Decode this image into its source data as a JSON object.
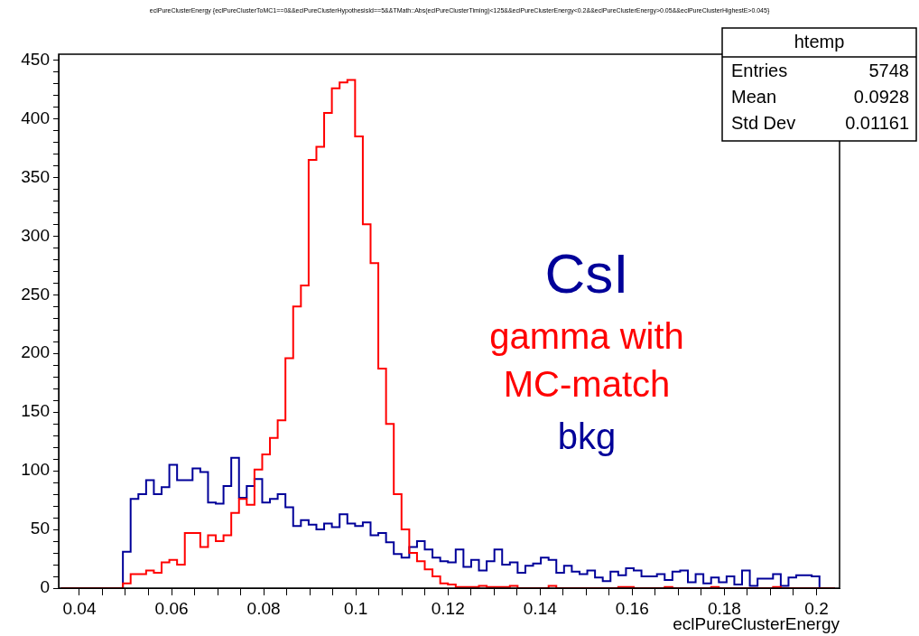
{
  "chart_data": {
    "type": "histogram",
    "title": "eclPureClusterEnergy {eclPureClusterToMC1==0&&eclPureClusterHypothesisId==5&&TMath::Abs(eclPureClusterTiming)<125&&eclPureClusterEnergy<0.2&&eclPureClusterEnergy>0.05&&eclPureClusterHighestE>0.045}",
    "xlabel": "eclPureClusterEnergy",
    "annotations": [
      "CsI",
      "htemp",
      "Entries",
      "5748",
      "Mean",
      "0.0928",
      "Std Dev",
      "0.01161"
    ],
    "bins": [
      0.036,
      0.03768,
      0.03936,
      0.04104,
      0.04272,
      0.0444,
      0.04608,
      0.04776,
      0.04944,
      0.05112,
      0.0528,
      0.05448,
      0.05616,
      0.05784,
      0.05952,
      0.0612,
      0.06288,
      0.06456,
      0.06624,
      0.06792,
      0.0696,
      0.07128,
      0.07296,
      0.07464,
      0.07632,
      0.078,
      0.07968,
      0.08136,
      0.08304,
      0.08472,
      0.0864,
      0.08808,
      0.08976,
      0.09144,
      0.09312,
      0.0948,
      0.09648,
      0.09816,
      0.09984,
      0.10152,
      0.1032,
      0.10488,
      0.10656,
      0.10824,
      0.10992,
      0.1116,
      0.11328,
      0.11496,
      0.11664,
      0.11832,
      0.12,
      0.12168,
      0.12336,
      0.12504,
      0.12672,
      0.1284,
      0.13008,
      0.13176,
      0.13344,
      0.13512,
      0.1368,
      0.13848,
      0.14016,
      0.14184,
      0.14352,
      0.1452,
      0.14688,
      0.14856,
      0.15024,
      0.15192,
      0.1536,
      0.15528,
      0.15696,
      0.15864,
      0.16032,
      0.162,
      0.16368,
      0.16536,
      0.16704,
      0.16872,
      0.1704,
      0.17208,
      0.17376,
      0.17544,
      0.17712,
      0.1788,
      0.18048,
      0.18216,
      0.18384,
      0.18552,
      0.1872,
      0.18888,
      0.19056,
      0.19224,
      0.19392,
      0.1956,
      0.19728,
      0.19896,
      0.20064,
      0.20232,
      0.204
    ],
    "series": [
      {
        "name": "gamma with MC-match",
        "color": "#ff0000",
        "values": [
          0,
          0,
          0,
          0,
          0,
          0,
          0,
          0,
          4,
          12,
          12,
          15,
          13,
          22,
          24,
          20,
          47,
          47,
          35,
          45,
          40,
          45,
          64,
          76,
          71,
          101,
          114,
          128,
          143,
          196,
          240,
          258,
          365,
          376,
          405,
          426,
          431,
          433,
          385,
          310,
          277,
          187,
          140,
          80,
          50,
          30,
          23,
          16,
          10,
          4,
          3,
          1,
          1,
          1,
          2,
          1,
          1,
          1,
          2,
          0,
          0,
          0,
          0,
          2,
          0,
          0,
          0,
          0,
          0,
          0,
          0,
          0,
          1,
          1,
          0,
          0,
          0,
          0,
          1,
          0,
          0,
          0,
          0,
          0,
          1,
          0,
          0,
          0,
          0,
          0,
          0,
          0,
          1,
          0,
          0,
          0,
          0,
          0,
          0,
          0
        ]
      },
      {
        "name": "bkg",
        "color": "#000099",
        "values": [
          0,
          0,
          0,
          0,
          0,
          0,
          0,
          0,
          31,
          76,
          80,
          92,
          80,
          86,
          105,
          92,
          92,
          102,
          99,
          73,
          72,
          87,
          111,
          77,
          87,
          93,
          73,
          76,
          80,
          69,
          53,
          58,
          54,
          50,
          55,
          52,
          63,
          55,
          53,
          56,
          45,
          47,
          39,
          29,
          26,
          35,
          40,
          33,
          26,
          23,
          22,
          33,
          18,
          24,
          15,
          23,
          33,
          20,
          22,
          13,
          19,
          21,
          26,
          24,
          13,
          19,
          14,
          12,
          15,
          9,
          6,
          14,
          11,
          17,
          15,
          10,
          10,
          12,
          7,
          14,
          15,
          5,
          12,
          4,
          9,
          5,
          10,
          3,
          15,
          2,
          8,
          8,
          12,
          2,
          9,
          11,
          11,
          10,
          0,
          0
        ]
      }
    ],
    "xlim": [
      0.0355,
      0.205
    ],
    "ylim": [
      0,
      455
    ],
    "xticks": [
      0.04,
      {
        "value": 0.045,
        "label": null
      },
      {
        "value": 0.05,
        "label": null
      },
      {
        "value": 0.055,
        "label": null
      },
      0.06,
      {
        "value": 0.065,
        "label": null
      },
      {
        "value": 0.07,
        "label": null
      },
      {
        "value": 0.075,
        "label": null
      },
      0.08,
      {
        "value": 0.085,
        "label": null
      },
      {
        "value": 0.09,
        "label": null
      },
      {
        "value": 0.095,
        "label": null
      },
      0.1,
      {
        "value": 0.105,
        "label": null
      },
      {
        "value": 0.11,
        "label": null
      },
      {
        "value": 0.115,
        "label": null
      },
      0.12,
      {
        "value": 0.125,
        "label": null
      },
      {
        "value": 0.13,
        "label": null
      },
      {
        "value": 0.135,
        "label": null
      },
      0.14,
      {
        "value": 0.145,
        "label": null
      },
      {
        "value": 0.15,
        "label": null
      },
      {
        "value": 0.155,
        "label": null
      },
      0.16,
      {
        "value": 0.165,
        "label": null
      },
      {
        "value": 0.17,
        "label": null
      },
      {
        "value": 0.175,
        "label": null
      },
      0.18,
      {
        "value": 0.185,
        "label": null
      },
      {
        "value": 0.19,
        "label": null
      },
      {
        "value": 0.195,
        "label": null
      },
      0.2
    ],
    "yticks": [
      0,
      {
        "value": 10,
        "label": null
      },
      {
        "value": 20,
        "label": null
      },
      {
        "value": 30,
        "label": null
      },
      {
        "value": 40,
        "label": null
      },
      50,
      {
        "value": 60,
        "label": null
      },
      {
        "value": 70,
        "label": null
      },
      {
        "value": 80,
        "label": null
      },
      {
        "value": 90,
        "label": null
      },
      100,
      {
        "value": 110,
        "label": null
      },
      {
        "value": 120,
        "label": null
      },
      {
        "value": 130,
        "label": null
      },
      {
        "value": 140,
        "label": null
      },
      150,
      {
        "value": 160,
        "label": null
      },
      {
        "value": 170,
        "label": null
      },
      {
        "value": 180,
        "label": null
      },
      {
        "value": 190,
        "label": null
      },
      200,
      {
        "value": 210,
        "label": null
      },
      {
        "value": 220,
        "label": null
      },
      {
        "value": 230,
        "label": null
      },
      {
        "value": 240,
        "label": null
      },
      250,
      {
        "value": 260,
        "label": null
      },
      {
        "value": 270,
        "label": null
      },
      {
        "value": 280,
        "label": null
      },
      {
        "value": 290,
        "label": null
      },
      300,
      {
        "value": 310,
        "label": null
      },
      {
        "value": 320,
        "label": null
      },
      {
        "value": 330,
        "label": null
      },
      {
        "value": 340,
        "label": null
      },
      350,
      {
        "value": 360,
        "label": null
      },
      {
        "value": 370,
        "label": null
      },
      {
        "value": 380,
        "label": null
      },
      {
        "value": 390,
        "label": null
      },
      400,
      {
        "value": 410,
        "label": null
      },
      {
        "value": 420,
        "label": null
      },
      {
        "value": 430,
        "label": null
      },
      {
        "value": 440,
        "label": null
      },
      450
    ]
  }
}
